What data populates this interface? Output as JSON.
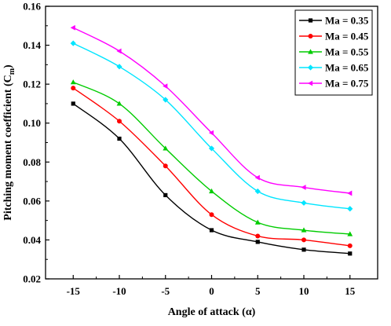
{
  "chart_data": {
    "type": "line",
    "title": "",
    "xlabel": "Angle of attack (α)",
    "ylabel": "Pitching moment coefficient (C",
    "ylabel_sub": "m",
    "ylabel_close": ")",
    "x": [
      -15,
      -10,
      -5,
      0,
      5,
      10,
      15
    ],
    "xlim": [
      -18,
      18
    ],
    "ylim": [
      0.02,
      0.16
    ],
    "xticks": [
      -15,
      -10,
      -5,
      0,
      5,
      10,
      15
    ],
    "yticks": [
      0.02,
      0.04,
      0.06,
      0.08,
      0.1,
      0.12,
      0.14,
      0.16
    ],
    "ytick_labels": [
      "0.02",
      "0.04",
      "0.06",
      "0.08",
      "0.10",
      "0.12",
      "0.14",
      "0.16"
    ],
    "grid": false,
    "legend_position": "top-right",
    "series": [
      {
        "name": "Ma = 0.35",
        "color": "#000000",
        "marker": "square",
        "values": [
          0.11,
          0.092,
          0.063,
          0.045,
          0.039,
          0.035,
          0.033
        ]
      },
      {
        "name": "Ma = 0.45",
        "color": "#ff0000",
        "marker": "circle",
        "values": [
          0.118,
          0.101,
          0.078,
          0.053,
          0.042,
          0.04,
          0.037
        ]
      },
      {
        "name": "Ma = 0.55",
        "color": "#00cc00",
        "marker": "triangle-up",
        "values": [
          0.121,
          0.11,
          0.087,
          0.065,
          0.049,
          0.045,
          0.043
        ]
      },
      {
        "name": "Ma = 0.65",
        "color": "#00e5ff",
        "marker": "diamond",
        "values": [
          0.141,
          0.129,
          0.112,
          0.087,
          0.065,
          0.059,
          0.056
        ]
      },
      {
        "name": "Ma = 0.75",
        "color": "#ff00ff",
        "marker": "triangle-left",
        "values": [
          0.149,
          0.137,
          0.119,
          0.095,
          0.072,
          0.067,
          0.064
        ]
      }
    ]
  }
}
